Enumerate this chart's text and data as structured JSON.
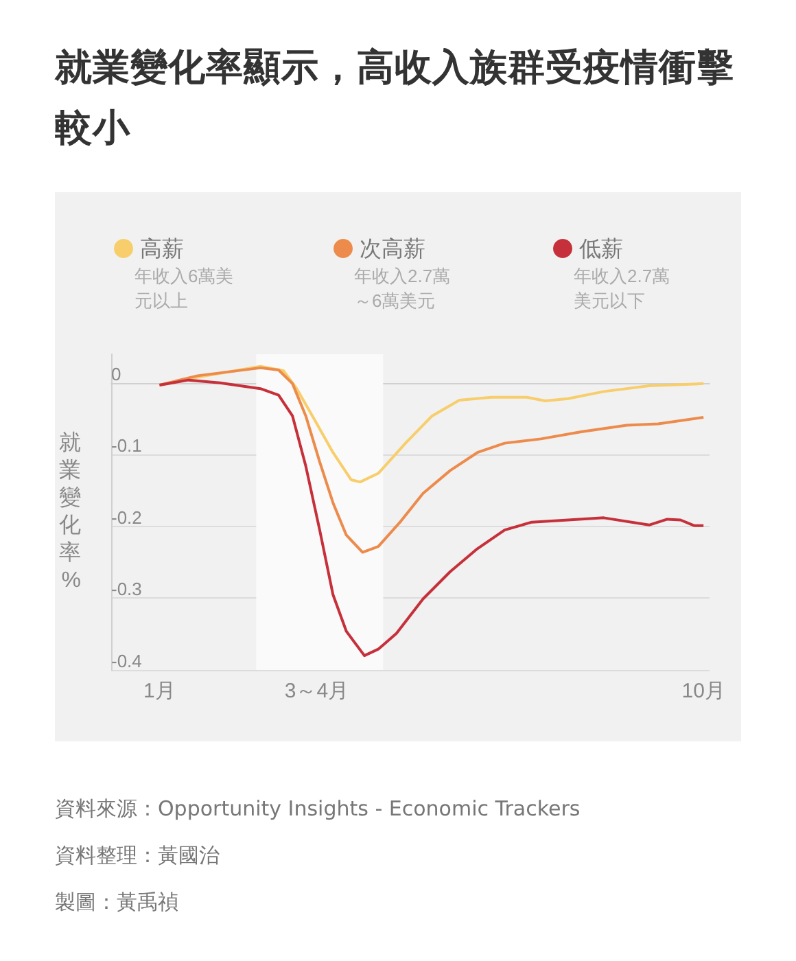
{
  "chart_data": {
    "type": "line",
    "title": "就業變化率顯示，高收入族群受疫情衝擊較小",
    "ylabel": "就業變化率%",
    "xlim": [
      0.2,
      10.1
    ],
    "xticks": [
      {
        "value": 1,
        "label": "1月"
      },
      {
        "value": 3.6,
        "label": "3～4月"
      },
      {
        "value": 10,
        "label": "10月"
      }
    ],
    "ylim": [
      -0.4,
      0.04
    ],
    "yticks": [
      0,
      -0.1,
      -0.2,
      -0.3,
      -0.4
    ],
    "grid": "y",
    "legend": "top",
    "marker": "none",
    "line_style": "solid",
    "bands": [
      {
        "axis": "x",
        "from": 2.6,
        "to": 4.7,
        "color": "#fafafa"
      }
    ],
    "series": [
      {
        "name": "高薪",
        "color": "#f7ce6b",
        "x": [
          1,
          1.63,
          2.67,
          3.05,
          3.27,
          3.57,
          3.87,
          4.17,
          4.32,
          4.62,
          5.07,
          5.51,
          5.96,
          6.49,
          7.08,
          7.38,
          7.76,
          8.35,
          9.1,
          10
        ],
        "values": [
          -0.003,
          0.008,
          0.023,
          0.017,
          -0.008,
          -0.052,
          -0.097,
          -0.135,
          -0.138,
          -0.126,
          -0.084,
          -0.046,
          -0.024,
          -0.02,
          -0.02,
          -0.025,
          -0.022,
          -0.012,
          -0.004,
          -0.001
        ]
      },
      {
        "name": "次高薪",
        "color": "#ec8b4b",
        "x": [
          1,
          1.63,
          2.67,
          2.97,
          3.2,
          3.42,
          3.65,
          3.87,
          4.09,
          4.36,
          4.62,
          4.99,
          5.36,
          5.81,
          6.26,
          6.71,
          7.31,
          7.98,
          8.73,
          9.25,
          10
        ],
        "values": [
          -0.003,
          0.01,
          0.021,
          0.018,
          -0.001,
          -0.046,
          -0.11,
          -0.167,
          -0.212,
          -0.236,
          -0.228,
          -0.193,
          -0.154,
          -0.122,
          -0.097,
          -0.084,
          -0.078,
          -0.068,
          -0.059,
          -0.057,
          -0.048
        ]
      },
      {
        "name": "低薪",
        "color": "#c6303a",
        "x": [
          1,
          1.48,
          2,
          2.67,
          2.97,
          3.2,
          3.42,
          3.65,
          3.87,
          4.09,
          4.39,
          4.62,
          4.92,
          5.36,
          5.81,
          6.26,
          6.71,
          7.16,
          7.76,
          8.35,
          9.1,
          9.4,
          9.62,
          9.85,
          10
        ],
        "values": [
          -0.003,
          0.004,
          0,
          -0.008,
          -0.017,
          -0.046,
          -0.116,
          -0.205,
          -0.295,
          -0.346,
          -0.38,
          -0.371,
          -0.349,
          -0.301,
          -0.263,
          -0.231,
          -0.205,
          -0.194,
          -0.191,
          -0.188,
          -0.198,
          -0.19,
          -0.191,
          -0.199,
          -0.199
        ]
      }
    ],
    "annotations": [
      "年收入6萬美元以上",
      "年收入2.7萬～6萬美元",
      "年收入2.7萬美元以下",
      "資料來源：Opportunity Insights - Economic Trackers",
      "資料整理：黃國治",
      "製圖：黃禹禎"
    ]
  }
}
